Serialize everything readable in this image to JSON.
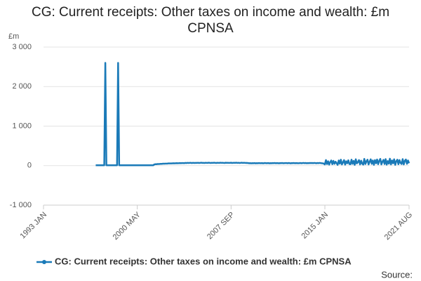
{
  "chart_data": {
    "type": "line",
    "title": "CG: Current receipts: Other taxes on income and wealth: £m CPNSA",
    "y_label": "£m",
    "source": "Source:",
    "x": [
      "1997 FEB",
      "1997 MAR",
      "1997 APR",
      "1997 MAY",
      "1997 JUN",
      "1997 JUL",
      "1997 AUG",
      "1997 SEP",
      "1997 OCT",
      "1997 NOV",
      "1997 DEC",
      "1998 JAN",
      "1998 FEB",
      "1998 MAR",
      "1998 APR",
      "1998 MAY",
      "1998 JUN",
      "1998 JUL",
      "1998 AUG",
      "1998 SEP",
      "1998 OCT",
      "1998 NOV",
      "1998 DEC",
      "1999 JAN",
      "1999 FEB",
      "1999 MAR",
      "1999 APR",
      "1999 MAY",
      "1999 JUN",
      "1999 JUL",
      "1999 AUG",
      "1999 SEP",
      "1999 OCT",
      "1999 NOV",
      "1999 DEC",
      "2000 JAN",
      "2000 FEB",
      "2000 MAR",
      "2000 APR",
      "2000 MAY",
      "2000 JUN",
      "2000 JUL",
      "2000 AUG",
      "2000 SEP",
      "2000 OCT",
      "2000 NOV",
      "2000 DEC",
      "2001 JAN",
      "2001 FEB",
      "2001 MAR",
      "2001 APR",
      "2001 MAY",
      "2001 JUN",
      "2001 JUL",
      "2001 AUG",
      "2001 SEP",
      "2001 OCT",
      "2001 NOV",
      "2001 DEC",
      "2002 JAN",
      "2002 FEB",
      "2002 MAR",
      "2002 APR",
      "2002 MAY",
      "2002 JUN",
      "2002 JUL",
      "2002 AUG",
      "2002 SEP",
      "2002 OCT",
      "2002 NOV",
      "2002 DEC",
      "2003 JAN",
      "2003 FEB",
      "2003 MAR",
      "2003 APR",
      "2003 MAY",
      "2003 JUN",
      "2003 JUL",
      "2003 AUG",
      "2003 SEP",
      "2003 OCT",
      "2003 NOV",
      "2003 DEC",
      "2004 JAN",
      "2004 FEB",
      "2004 MAR",
      "2004 APR",
      "2004 MAY",
      "2004 JUN",
      "2004 JUL",
      "2004 AUG",
      "2004 SEP",
      "2004 OCT",
      "2004 NOV",
      "2004 DEC",
      "2005 JAN",
      "2005 FEB",
      "2005 MAR",
      "2005 APR",
      "2005 MAY",
      "2005 JUN",
      "2005 JUL",
      "2005 AUG",
      "2005 SEP",
      "2005 OCT",
      "2005 NOV",
      "2005 DEC",
      "2006 JAN",
      "2006 FEB",
      "2006 MAR",
      "2006 APR",
      "2006 MAY",
      "2006 JUN",
      "2006 JUL",
      "2006 AUG",
      "2006 SEP",
      "2006 OCT",
      "2006 NOV",
      "2006 DEC",
      "2007 JAN",
      "2007 FEB",
      "2007 MAR",
      "2007 APR",
      "2007 MAY",
      "2007 JUN",
      "2007 JUL",
      "2007 AUG",
      "2007 SEP",
      "2007 OCT",
      "2007 NOV",
      "2007 DEC",
      "2008 JAN",
      "2008 FEB",
      "2008 MAR",
      "2008 APR",
      "2008 MAY",
      "2008 JUN",
      "2008 JUL",
      "2008 AUG",
      "2008 SEP",
      "2008 OCT",
      "2008 NOV",
      "2008 DEC",
      "2009 JAN",
      "2009 FEB",
      "2009 MAR",
      "2009 APR",
      "2009 MAY",
      "2009 JUN",
      "2009 JUL",
      "2009 AUG",
      "2009 SEP",
      "2009 OCT",
      "2009 NOV",
      "2009 DEC",
      "2010 JAN",
      "2010 FEB",
      "2010 MAR",
      "2010 APR",
      "2010 MAY",
      "2010 JUN",
      "2010 JUL",
      "2010 AUG",
      "2010 SEP",
      "2010 OCT",
      "2010 NOV",
      "2010 DEC",
      "2011 JAN",
      "2011 FEB",
      "2011 MAR",
      "2011 APR",
      "2011 MAY",
      "2011 JUN",
      "2011 JUL",
      "2011 AUG",
      "2011 SEP",
      "2011 OCT",
      "2011 NOV",
      "2011 DEC",
      "2012 JAN",
      "2012 FEB",
      "2012 MAR",
      "2012 APR",
      "2012 MAY",
      "2012 JUN",
      "2012 JUL",
      "2012 AUG",
      "2012 SEP",
      "2012 OCT",
      "2012 NOV",
      "2012 DEC",
      "2013 JAN",
      "2013 FEB",
      "2013 MAR",
      "2013 APR",
      "2013 MAY",
      "2013 JUN",
      "2013 JUL",
      "2013 AUG",
      "2013 SEP",
      "2013 OCT",
      "2013 NOV",
      "2013 DEC",
      "2014 JAN",
      "2014 FEB",
      "2014 MAR",
      "2014 APR",
      "2014 MAY",
      "2014 JUN",
      "2014 JUL",
      "2014 AUG",
      "2014 SEP",
      "2014 OCT",
      "2014 NOV",
      "2014 DEC",
      "2015 JAN",
      "2015 FEB",
      "2015 MAR",
      "2015 APR",
      "2015 MAY",
      "2015 JUN",
      "2015 JUL",
      "2015 AUG",
      "2015 SEP",
      "2015 OCT",
      "2015 NOV",
      "2015 DEC",
      "2016 JAN",
      "2016 FEB",
      "2016 MAR",
      "2016 APR",
      "2016 MAY",
      "2016 JUN",
      "2016 JUL",
      "2016 AUG",
      "2016 SEP",
      "2016 OCT",
      "2016 NOV",
      "2016 DEC",
      "2017 JAN",
      "2017 FEB",
      "2017 MAR",
      "2017 APR",
      "2017 MAY",
      "2017 JUN",
      "2017 JUL",
      "2017 AUG",
      "2017 SEP",
      "2017 OCT",
      "2017 NOV",
      "2017 DEC",
      "2018 JAN",
      "2018 FEB",
      "2018 MAR",
      "2018 APR",
      "2018 MAY",
      "2018 JUN",
      "2018 JUL",
      "2018 AUG",
      "2018 SEP",
      "2018 OCT",
      "2018 NOV",
      "2018 DEC",
      "2019 JAN",
      "2019 FEB",
      "2019 MAR",
      "2019 APR",
      "2019 MAY",
      "2019 JUN",
      "2019 JUL",
      "2019 AUG",
      "2019 SEP",
      "2019 OCT",
      "2019 NOV",
      "2019 DEC",
      "2020 JAN",
      "2020 FEB",
      "2020 MAR",
      "2020 APR",
      "2020 MAY",
      "2020 JUN",
      "2020 JUL",
      "2020 AUG",
      "2020 SEP",
      "2020 OCT",
      "2020 NOV",
      "2020 DEC",
      "2021 JAN",
      "2021 FEB",
      "2021 MAR",
      "2021 APR",
      "2021 MAY",
      "2021 JUN",
      "2021 JUL",
      "2021 AUG"
    ],
    "series": [
      {
        "name": "CG: Current receipts: Other taxes on income and wealth: £m CPNSA",
        "color": "#1a7ab8",
        "values": [
          10,
          10,
          10,
          10,
          10,
          10,
          10,
          10,
          10,
          2600,
          10,
          10,
          10,
          10,
          10,
          10,
          10,
          10,
          10,
          10,
          10,
          2600,
          10,
          10,
          10,
          10,
          10,
          10,
          10,
          10,
          10,
          10,
          10,
          10,
          10,
          10,
          10,
          10,
          10,
          10,
          10,
          10,
          10,
          10,
          10,
          10,
          10,
          10,
          10,
          10,
          10,
          10,
          10,
          10,
          10,
          30,
          35,
          35,
          40,
          40,
          42,
          45,
          45,
          48,
          50,
          50,
          52,
          50,
          55,
          55,
          55,
          55,
          58,
          60,
          58,
          60,
          62,
          60,
          62,
          65,
          62,
          65,
          65,
          62,
          68,
          65,
          70,
          66,
          68,
          72,
          65,
          70,
          68,
          66,
          70,
          68,
          72,
          66,
          70,
          74,
          68,
          70,
          66,
          72,
          70,
          68,
          74,
          70,
          66,
          72,
          68,
          74,
          70,
          66,
          72,
          70,
          68,
          74,
          70,
          72,
          68,
          66,
          74,
          70,
          72,
          68,
          70,
          74,
          66,
          72,
          70,
          70,
          74,
          68,
          72,
          66,
          70,
          74,
          68,
          72,
          70,
          66,
          68,
          64,
          60,
          62,
          58,
          62,
          60,
          64,
          58,
          62,
          60,
          64,
          62,
          60,
          64,
          58,
          62,
          66,
          60,
          62,
          64,
          58,
          62,
          60,
          64,
          62,
          66,
          60,
          64,
          62,
          58,
          64,
          62,
          66,
          60,
          62,
          64,
          64,
          60,
          66,
          62,
          58,
          64,
          62,
          66,
          60,
          64,
          62,
          60,
          62,
          66,
          60,
          64,
          68,
          62,
          66,
          60,
          64,
          62,
          66,
          64,
          66,
          62,
          68,
          64,
          60,
          66,
          62,
          68,
          64,
          60,
          58,
          50,
          30,
          140,
          40,
          110,
          25,
          90,
          130,
          35,
          120,
          45,
          100,
          60,
          20,
          130,
          50,
          150,
          30,
          80,
          140,
          25,
          110,
          60,
          135,
          40,
          35,
          150,
          45,
          120,
          20,
          160,
          55,
          90,
          140,
          30,
          125,
          50,
          25,
          170,
          40,
          110,
          150,
          30,
          95,
          160,
          45,
          130,
          20,
          140,
          60,
          155,
          35,
          120,
          170,
          30,
          100,
          145,
          40,
          165,
          25,
          115,
          50,
          175,
          30,
          130,
          60,
          160,
          20,
          110,
          150,
          35,
          140,
          70,
          40,
          165,
          30,
          120,
          155,
          45,
          130,
          60
        ]
      }
    ],
    "xlim": [
      "1993 JAN",
      "2021 AUG"
    ],
    "xticks": [
      "1993 JAN",
      "2000 MAY",
      "2007 SEP",
      "2015 JAN",
      "2021 AUG"
    ],
    "ylim": [
      -1000,
      3000
    ],
    "yticks": [
      {
        "value": -1000,
        "label": "-1 000"
      },
      0,
      {
        "value": 1000,
        "label": "1 000"
      },
      {
        "value": 2000,
        "label": "2 000"
      },
      {
        "value": 3000,
        "label": "3 000"
      }
    ],
    "grid": true
  }
}
